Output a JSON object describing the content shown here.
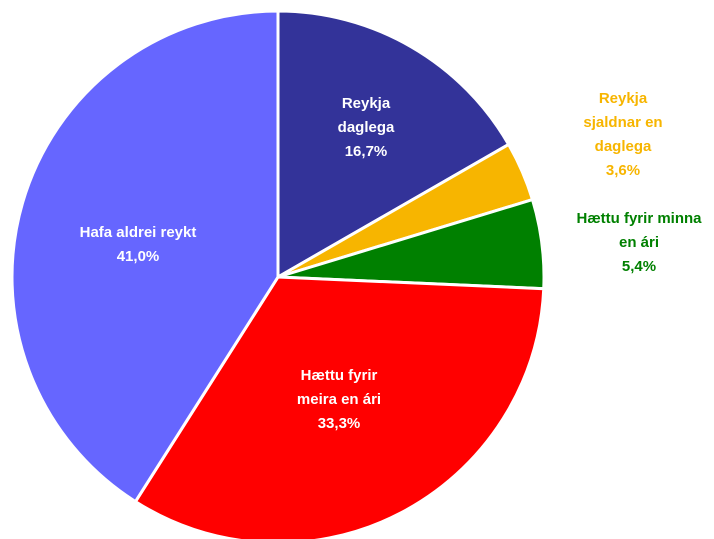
{
  "chart_data": {
    "type": "pie",
    "categories": [
      "Reykja daglega",
      "Reykja sjaldnar en daglega",
      "Hættu fyrir minna en ári",
      "Hættu fyrir meira en ári",
      "Hafa aldrei reykt"
    ],
    "values": [
      16.7,
      3.6,
      5.4,
      33.3,
      41.0
    ],
    "value_labels": [
      "16,7%",
      "3,6%",
      "5,4%",
      "33,3%",
      "41,0%"
    ],
    "colors": [
      "#333399",
      "#f7b500",
      "#008000",
      "#ff0000",
      "#6666ff"
    ]
  }
}
